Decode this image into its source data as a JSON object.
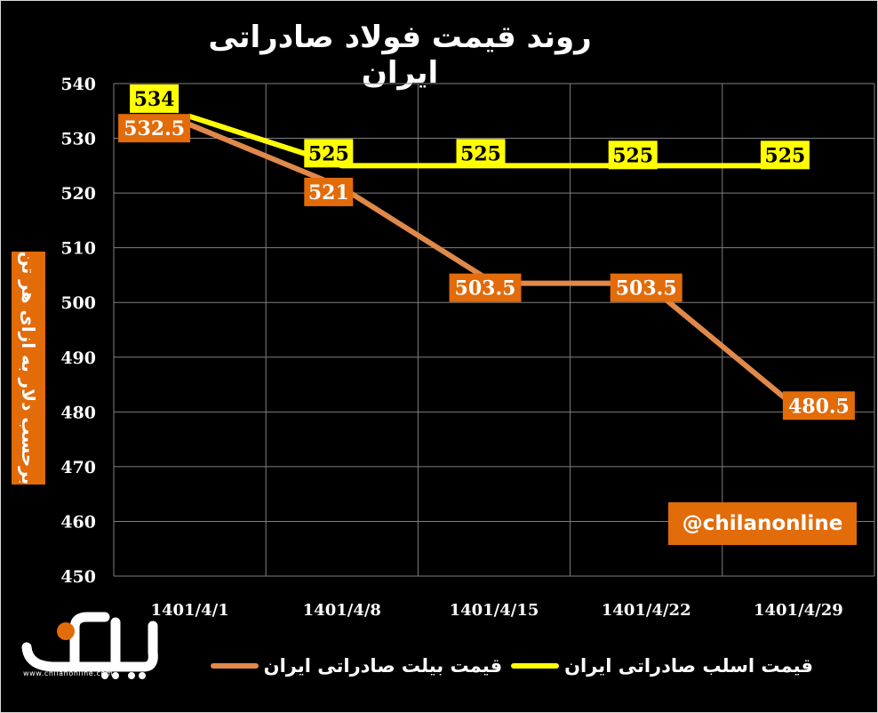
{
  "title": "روند قیمت فولاد صادراتی ایران",
  "watermark": "@chilanonline",
  "logo": {
    "site": "www.chilanonline.com",
    "text": "چیلان"
  },
  "colors": {
    "slab": "#ffff00",
    "billet": "#e26b0a",
    "billet_line": "#e0894a",
    "grid": "#7f7f7f",
    "axis_text": "#ffffff"
  },
  "chart_data": {
    "type": "line",
    "title": "روند قیمت فولاد صادراتی ایران",
    "xlabel": "",
    "ylabel": "برحسب دلار به ازای هر تن",
    "ylim": [
      450,
      540
    ],
    "yticks": [
      540,
      530,
      520,
      510,
      500,
      490,
      480,
      470,
      460,
      450
    ],
    "grid": true,
    "legend": "bottom",
    "categories": [
      "1401/4/1",
      "1401/4/8",
      "1401/4/15",
      "1401/4/22",
      "1401/4/29"
    ],
    "series": [
      {
        "name": "قیمت اسلب صادراتی ایران",
        "key": "slab",
        "values": [
          534,
          525,
          525,
          525,
          525
        ],
        "labels": [
          "534",
          "525",
          "525",
          "525",
          "525"
        ]
      },
      {
        "name": "قیمت بیلت صادراتی ایران",
        "key": "billet",
        "values": [
          532.5,
          521,
          503.5,
          503.5,
          480.5
        ],
        "labels": [
          "532.5",
          "521",
          "503.5",
          "503.5",
          "480.5"
        ]
      }
    ]
  }
}
